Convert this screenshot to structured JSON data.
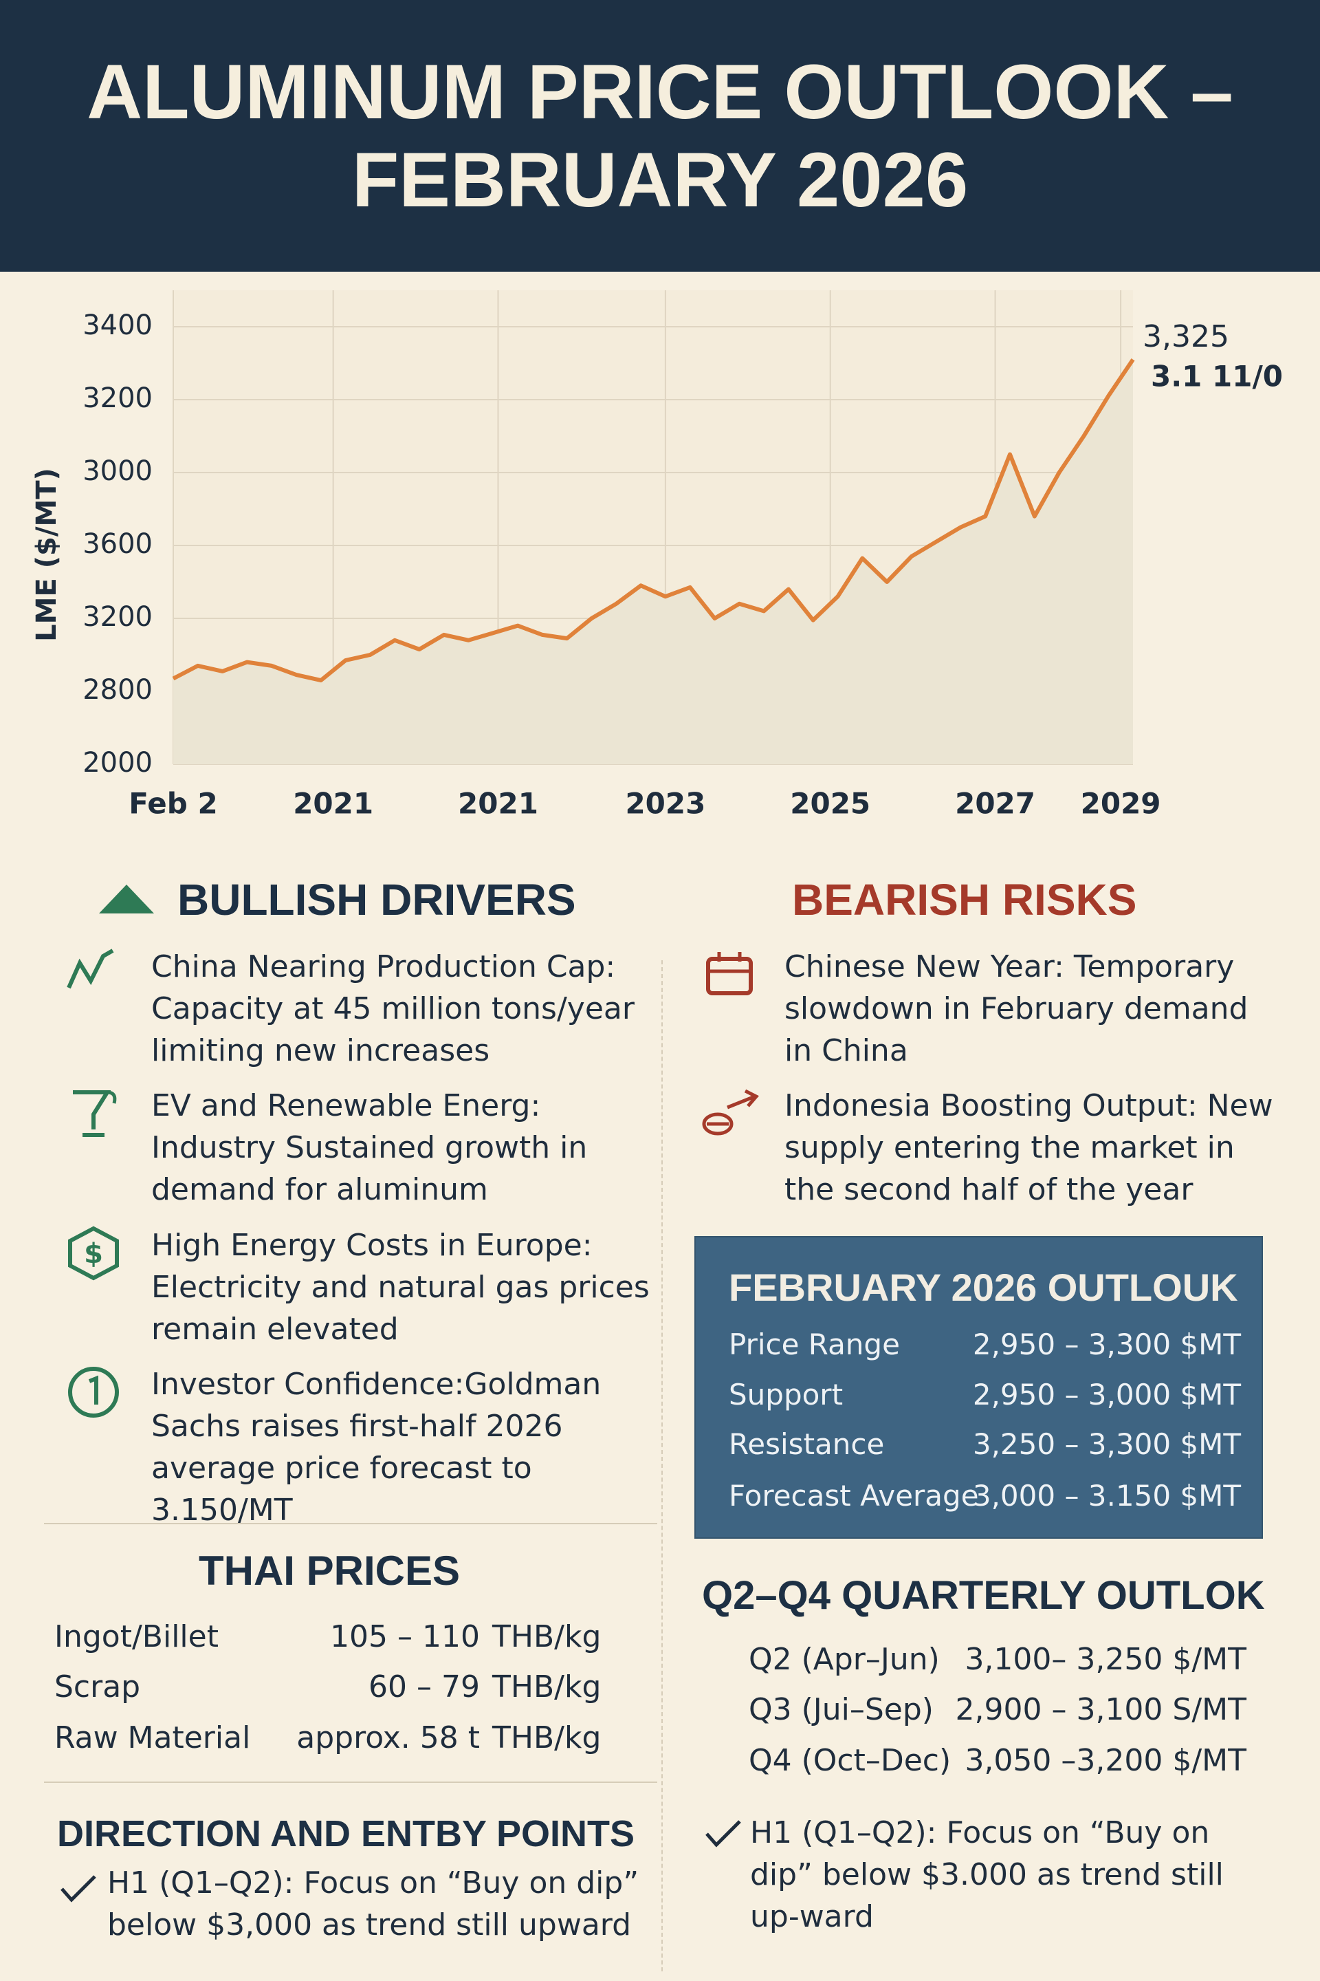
{
  "header": {
    "title": "ALUMINUM PRICE OUTLOOK – FEBRUARY 2026"
  },
  "chart_data": {
    "type": "line",
    "y_label": "LME ($/MT)",
    "x": [
      0,
      1,
      2,
      3,
      4,
      5,
      6,
      7,
      8,
      9,
      10,
      11,
      12,
      13,
      14,
      15,
      16,
      17,
      18,
      19,
      20,
      21,
      22,
      23,
      24,
      25,
      26,
      27,
      28,
      29,
      30,
      31,
      32,
      33,
      34,
      35,
      36,
      37,
      38,
      39
    ],
    "values": [
      2435,
      2470,
      2455,
      2480,
      2470,
      2445,
      2430,
      2485,
      2500,
      2540,
      2515,
      2555,
      2540,
      2560,
      2580,
      2555,
      2545,
      2600,
      2640,
      2690,
      2660,
      2685,
      2600,
      2640,
      2620,
      2680,
      2595,
      2660,
      2765,
      2700,
      2770,
      2810,
      2850,
      2880,
      3050,
      2880,
      3000,
      3100,
      3210,
      3310
    ],
    "color": "#e0823a",
    "area": true,
    "area_color": "#ebe5d3",
    "xlim": [
      0,
      39
    ],
    "ylim": [
      2200,
      3500
    ],
    "xticks": [
      {
        "value": 0,
        "label": "Feb 2"
      },
      {
        "value": 6.5,
        "label": "2021"
      },
      {
        "value": 13.2,
        "label": "2021"
      },
      {
        "value": 20,
        "label": "2023"
      },
      {
        "value": 26.7,
        "label": "2025"
      },
      {
        "value": 33.4,
        "label": "2027"
      },
      {
        "value": 38.5,
        "label": "2029"
      }
    ],
    "yticks": [
      3400,
      3200,
      3000,
      {
        "value": 2800,
        "label": "3600"
      },
      {
        "value": 2600,
        "label": "3200"
      },
      {
        "value": 2400,
        "label": "2800"
      },
      {
        "value": 2200,
        "label": "2000"
      }
    ],
    "annotations": [
      "3,325",
      "3.1 11/0"
    ],
    "grid": true
  },
  "bullish": {
    "title": "BULLISH DRIVERS",
    "items": [
      "China Nearing Production Cap: Capacity at 45 million tons/year limiting new increases",
      "EV and Renewable Energ: Industry Sustained growth in demand for aluminum",
      "High Energy Costs in Europe: Electricity and natural gas prices remain elevated",
      "Investor Confidence:Goldman Sachs raises first-half 2026 average price forecast to 3.150/MT"
    ]
  },
  "bearish": {
    "title": "BEARISH RISKS",
    "items": [
      "Chinese New Year:  Temporary slowdown in February demand in China",
      "Indonesia Boosting Output: New supply entering the market in the second half of the year"
    ]
  },
  "outlook": {
    "title": "FEBRUARY 2026 OUTLOUK",
    "rows": [
      {
        "label": "Price Range",
        "value": "2,950 – 3,300 $MT"
      },
      {
        "label": "Support",
        "value": "2,950 – 3,000 $MT"
      },
      {
        "label": "Resistance",
        "value": "3,250 – 3,300 $MT"
      },
      {
        "label": "Forecast Average",
        "value": "3,000 – 3.150 $MT"
      }
    ]
  },
  "thai_prices": {
    "title": "THAI PRICES",
    "rows": [
      {
        "label": "Ingot/Billet",
        "range": "105 – 110",
        "unit": "THB/kg"
      },
      {
        "label": "Scrap",
        "range": "60 – 79",
        "unit": "THB/kg"
      },
      {
        "label": "Raw Material",
        "range": "approx. 58 t",
        "unit": "THB/kg"
      }
    ]
  },
  "quarterly": {
    "title": "Q2–Q4 QUARTERLY OUTLOK",
    "rows": [
      {
        "label": "Q2 (Apr–Jun)",
        "value": "3,100– 3,250 $/MT"
      },
      {
        "label": "Q3 (Jui–Sep)",
        "value": "2,900 – 3,100 S/MT"
      },
      {
        "label": "Q4 (Oct–Dec)",
        "value": "3,050 –3,200 $/MT"
      }
    ],
    "note": "H1 (Q1–Q2): Focus on “Buy on dip” below $3.000 as trend still up-ward"
  },
  "direction": {
    "title": "DIRECTION AND ENTBY POINTS",
    "note": "H1 (Q1–Q2): Focus on “Buy on dip” below $3,000 as trend still upward"
  }
}
